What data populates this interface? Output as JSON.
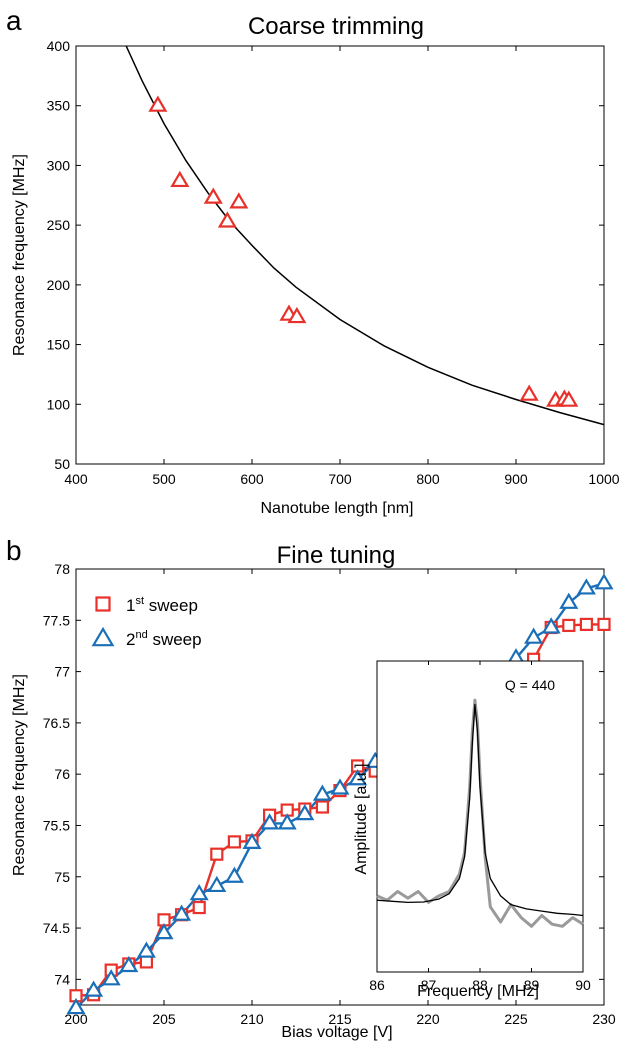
{
  "chart_data": [
    {
      "panel": "a",
      "type": "scatter",
      "title": "Coarse trimming",
      "xlabel": "Nanotube length [nm]",
      "ylabel": "Resonance frequency [MHz]",
      "xlim": [
        400,
        1000
      ],
      "ylim": [
        50,
        400
      ],
      "x_ticks": [
        400,
        500,
        600,
        700,
        800,
        900,
        1000
      ],
      "y_ticks": [
        50,
        100,
        150,
        200,
        250,
        300,
        350,
        400
      ],
      "series": [
        {
          "marker": "triangle",
          "color": "#e8312a",
          "x": [
            493,
            518,
            556,
            572,
            585,
            642,
            651,
            915,
            945,
            955,
            960
          ],
          "y": [
            350,
            287,
            273,
            253,
            269,
            175,
            173,
            108,
            103,
            104,
            103
          ]
        }
      ],
      "fit_curve": {
        "color": "#000000",
        "x": [
          457,
          475,
          500,
          525,
          550,
          575,
          600,
          625,
          650,
          700,
          750,
          800,
          850,
          900,
          950,
          1000
        ],
        "y": [
          400,
          371,
          335,
          304,
          277,
          253,
          233,
          214,
          198,
          171,
          149,
          131,
          116,
          104,
          93,
          83
        ]
      },
      "grid": false
    },
    {
      "panel": "b",
      "type": "line",
      "title": "Fine tuning",
      "xlabel": "Bias voltage [V]",
      "ylabel": "Resonance frequency [MHz]",
      "xlim": [
        200,
        230
      ],
      "ylim": [
        73.75,
        78
      ],
      "x_ticks": [
        200,
        205,
        210,
        215,
        220,
        225,
        230
      ],
      "y_ticks": [
        "74",
        "74.5",
        "75",
        "75.5",
        "76",
        "76.5",
        "77",
        "77.5",
        "78"
      ],
      "legend_position": "top-left",
      "series": [
        {
          "legend_base": "1",
          "legend_sup": "st",
          "legend_rest": " sweep",
          "marker": "square",
          "color": "#e8312a",
          "x": [
            200,
            201,
            202,
            203,
            204,
            205,
            206,
            207,
            208,
            209,
            210,
            211,
            212,
            213,
            214,
            215,
            216,
            217,
            218,
            219,
            220,
            221,
            222,
            223,
            224,
            225,
            226,
            227,
            228,
            229,
            230
          ],
          "y": [
            73.84,
            73.85,
            74.09,
            74.15,
            74.17,
            74.58,
            74.63,
            74.7,
            75.22,
            75.34,
            75.35,
            75.6,
            75.65,
            75.66,
            75.68,
            75.84,
            76.08,
            76.03,
            76.02,
            76.02,
            76.36,
            76.43,
            76.67,
            76.75,
            76.84,
            76.95,
            77.12,
            77.43,
            77.45,
            77.46,
            77.46
          ]
        },
        {
          "legend_base": "2",
          "legend_sup": "nd",
          "legend_rest": " sweep",
          "marker": "triangle",
          "color": "#1a6fb8",
          "x": [
            200,
            201,
            202,
            203,
            204,
            205,
            206,
            207,
            208,
            209,
            210,
            211,
            212,
            213,
            214,
            215,
            216,
            217,
            218,
            219,
            220,
            221,
            222,
            223,
            224,
            225,
            226,
            227,
            228,
            229,
            230
          ],
          "y": [
            73.72,
            73.89,
            74.0,
            74.13,
            74.27,
            74.45,
            74.63,
            74.83,
            74.91,
            75.0,
            75.33,
            75.52,
            75.52,
            75.61,
            75.8,
            75.86,
            75.95,
            76.12,
            76.2,
            76.41,
            76.51,
            76.55,
            76.81,
            76.85,
            76.99,
            77.13,
            77.33,
            77.43,
            77.67,
            77.81,
            77.86
          ]
        }
      ],
      "grid": false
    },
    {
      "panel": "inset",
      "type": "line",
      "annotation": "Q = 440",
      "xlabel": "Frequency [MHz]",
      "ylabel": "Amplitude [a.u.]",
      "xlim": [
        86,
        90
      ],
      "x_ticks": [
        86,
        87,
        88,
        89,
        90
      ],
      "series": [
        {
          "color": "#9a9a9a",
          "x": [
            86.0,
            86.2,
            86.4,
            86.6,
            86.8,
            87.0,
            87.2,
            87.4,
            87.6,
            87.7,
            87.8,
            87.85,
            87.9,
            87.95,
            88.0,
            88.1,
            88.2,
            88.4,
            88.6,
            88.8,
            89.0,
            89.2,
            89.4,
            89.6,
            89.8,
            90.0
          ],
          "y": [
            0.1,
            0.08,
            0.12,
            0.09,
            0.12,
            0.07,
            0.1,
            0.12,
            0.2,
            0.3,
            0.6,
            0.85,
            1.0,
            0.9,
            0.65,
            0.28,
            0.05,
            -0.02,
            0.06,
            0.0,
            -0.04,
            0.01,
            -0.03,
            -0.04,
            0.0,
            -0.03
          ]
        },
        {
          "color": "#000000",
          "x": [
            86.0,
            86.3,
            86.6,
            86.9,
            87.2,
            87.4,
            87.6,
            87.7,
            87.8,
            87.85,
            87.9,
            87.95,
            88.0,
            88.1,
            88.2,
            88.4,
            88.6,
            88.9,
            89.2,
            89.5,
            89.8,
            90.0
          ],
          "y": [
            0.08,
            0.075,
            0.07,
            0.072,
            0.085,
            0.11,
            0.18,
            0.28,
            0.55,
            0.8,
            0.98,
            0.86,
            0.6,
            0.3,
            0.18,
            0.1,
            0.06,
            0.04,
            0.03,
            0.02,
            0.015,
            0.01
          ]
        }
      ]
    }
  ]
}
